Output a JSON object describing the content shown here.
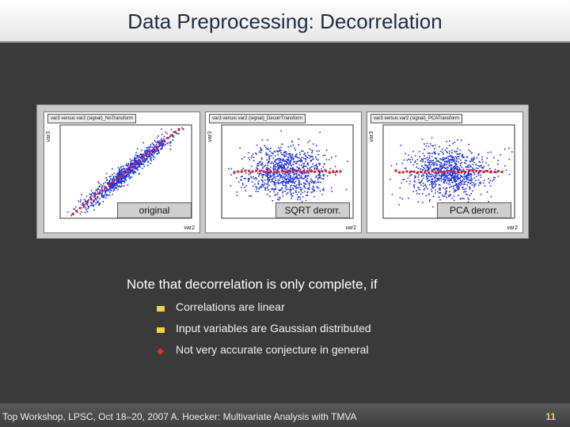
{
  "title": "Data Preprocessing: Decorrelation",
  "plots": [
    {
      "header": "var3 versus var2 (signal)_NoTransform",
      "tag": "original",
      "xlabel": "var2",
      "ylabel": "var3"
    },
    {
      "header": "var3 versus var2 (signal)_DecorrTransform",
      "tag": "SQRT derorr.",
      "xlabel": "var2",
      "ylabel": "var3"
    },
    {
      "header": "var3 versus var2 (signal)_PCATransform",
      "tag": "PCA derorr.",
      "xlabel": "var2",
      "ylabel": "var3"
    }
  ],
  "note": "Note that decorrelation is only complete, if",
  "bullets": [
    {
      "text": "Correlations are linear",
      "color": "#f2d24a"
    },
    {
      "text": "Input variables are Gaussian distributed",
      "color": "#f2d24a"
    },
    {
      "text": "Not very accurate conjecture in general",
      "color": "#e03030"
    }
  ],
  "footer": {
    "text": "Top Workshop, LPSC, Oct 18–20, 2007 A. Hoecker: Multivariate Analysis with TMVA",
    "page": "11"
  },
  "colors": {
    "points": "#1f2fe0",
    "profile": "#e02020"
  }
}
